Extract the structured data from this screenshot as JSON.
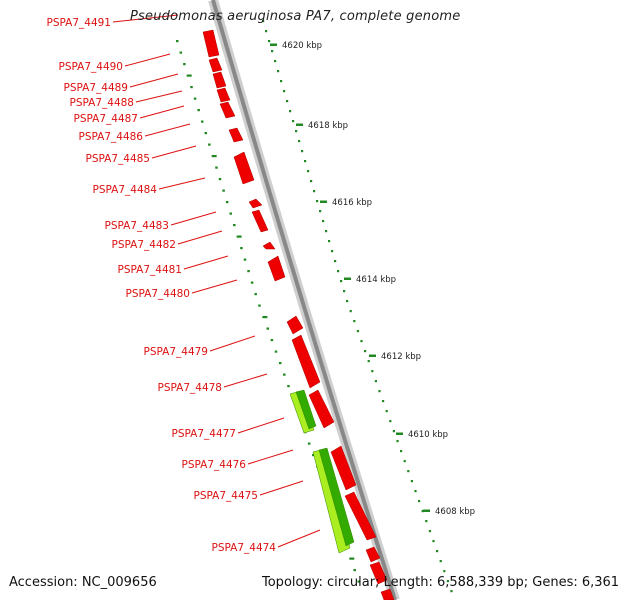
{
  "title": "Pseudomonas aeruginosa PA7, complete genome",
  "footer": {
    "accession": "Accession: NC_009656",
    "summary": "Topology: circular; Length: 6,588,339 bp; Genes: 6,361"
  },
  "colors": {
    "gene_red": "#ee0000",
    "gene_green": "#33aa00",
    "gene_lime": "#aaee22",
    "backbone": "#888888",
    "gc_dots": "#228822",
    "label_red": "#dd1111"
  },
  "scale_ticks": [
    "4620 kbp",
    "4618 kbp",
    "4616 kbp",
    "4614 kbp",
    "4612 kbp",
    "4610 kbp",
    "4608 kbp"
  ],
  "genes": [
    {
      "name": "PSPA7_4491"
    },
    {
      "name": "PSPA7_4490"
    },
    {
      "name": "PSPA7_4489"
    },
    {
      "name": "PSPA7_4488"
    },
    {
      "name": "PSPA7_4487"
    },
    {
      "name": "PSPA7_4486"
    },
    {
      "name": "PSPA7_4485"
    },
    {
      "name": "PSPA7_4484"
    },
    {
      "name": "PSPA7_4483"
    },
    {
      "name": "PSPA7_4482"
    },
    {
      "name": "PSPA7_4481"
    },
    {
      "name": "PSPA7_4480"
    },
    {
      "name": "PSPA7_4479"
    },
    {
      "name": "PSPA7_4478"
    },
    {
      "name": "PSPA7_4477"
    },
    {
      "name": "PSPA7_4476"
    },
    {
      "name": "PSPA7_4475"
    },
    {
      "name": "PSPA7_4474"
    }
  ]
}
